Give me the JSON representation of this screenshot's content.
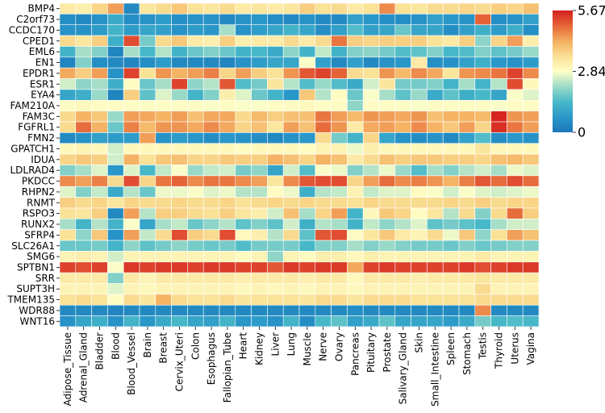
{
  "chart_data": {
    "type": "heatmap",
    "title": "",
    "xlabel": "",
    "ylabel": "",
    "rows": [
      "BMP4",
      "C2orf73",
      "CCDC170",
      "CPED1",
      "EML6",
      "EN1",
      "EPDR1",
      "ESR1",
      "EYA4",
      "FAM210A",
      "FAM3C",
      "FGFRL1",
      "FMN2",
      "GPATCH1",
      "IDUA",
      "LDLRAD4",
      "PKDCC",
      "RHPN2",
      "RNMT",
      "RSPO3",
      "RUNX2",
      "SFRP4",
      "SLC26A1",
      "SMG6",
      "SPTBN1",
      "SRR",
      "SUPT3H",
      "TMEM135",
      "WDR88",
      "WNT16"
    ],
    "columns": [
      "Adipose_Tissue",
      "Adrenal_Gland",
      "Bladder",
      "Blood",
      "Blood_Vessel",
      "Brain",
      "Breast",
      "Cervix_Uteri",
      "Colon",
      "Esophagus",
      "Fallopian_Tube",
      "Heart",
      "Kidney",
      "Liver",
      "Lung",
      "Muscle",
      "Nerve",
      "Ovary",
      "Pancreas",
      "Pituitary",
      "Prostate",
      "Salivary_Gland",
      "Skin",
      "Small_Intestine",
      "Spleen",
      "Stomach",
      "Testis",
      "Thyroid",
      "Uterus",
      "Vagina"
    ],
    "values": [
      [
        3.3,
        3.2,
        3.7,
        4.4,
        0.4,
        3.4,
        3.6,
        3.9,
        3.5,
        3.4,
        3.6,
        3.3,
        3.4,
        3.3,
        3.4,
        3.8,
        3.5,
        3.6,
        3.3,
        3.5,
        4.6,
        3.5,
        3.4,
        3.6,
        3.6,
        3.7,
        3.6,
        3.8,
        3.7,
        4.0
      ],
      [
        0.5,
        0.4,
        0.6,
        1.1,
        0.5,
        0.6,
        0.8,
        0.5,
        0.6,
        0.6,
        0.4,
        0.6,
        0.7,
        0.5,
        0.4,
        0.6,
        0.4,
        0.4,
        0.9,
        0.7,
        0.5,
        0.5,
        0.6,
        0.9,
        0.7,
        0.6,
        5.0,
        0.5,
        0.6,
        0.9
      ],
      [
        0.6,
        0.6,
        0.8,
        1.3,
        0.8,
        1.0,
        0.9,
        0.6,
        0.8,
        0.7,
        2.2,
        0.6,
        0.8,
        1.0,
        1.3,
        1.0,
        0.5,
        0.9,
        1.5,
        0.9,
        1.0,
        1.7,
        1.0,
        1.0,
        0.5,
        0.9,
        1.2,
        0.8,
        1.2,
        0.5
      ],
      [
        3.6,
        3.4,
        3.8,
        1.2,
        5.2,
        1.8,
        3.6,
        3.9,
        3.3,
        3.2,
        3.8,
        3.2,
        3.3,
        3.3,
        3.6,
        3.3,
        3.6,
        4.8,
        3.8,
        3.7,
        3.8,
        3.8,
        3.8,
        3.5,
        3.3,
        3.8,
        2.0,
        3.7,
        4.4,
        3.2
      ],
      [
        1.3,
        2.2,
        1.9,
        0.3,
        2.2,
        1.4,
        2.3,
        1.3,
        1.7,
        1.9,
        1.7,
        1.3,
        1.4,
        1.1,
        2.0,
        1.3,
        2.4,
        1.3,
        1.9,
        2.0,
        1.8,
        1.5,
        1.6,
        1.9,
        1.4,
        1.5,
        1.9,
        1.6,
        1.8,
        2.1
      ],
      [
        0.3,
        1.9,
        0.5,
        0.4,
        0.3,
        0.5,
        0.8,
        0.4,
        0.4,
        0.4,
        0.3,
        0.6,
        0.8,
        1.0,
        1.0,
        2.8,
        0.9,
        0.4,
        0.9,
        0.4,
        0.6,
        0.7,
        3.3,
        0.5,
        0.6,
        0.9,
        1.2,
        0.7,
        0.6,
        0.8
      ],
      [
        4.3,
        3.8,
        4.4,
        0.6,
        5.3,
        3.5,
        4.5,
        4.2,
        4.4,
        4.7,
        3.7,
        4.4,
        3.8,
        3.5,
        4.5,
        5.1,
        5.3,
        5.0,
        3.6,
        3.5,
        4.5,
        4.1,
        4.6,
        4.3,
        3.4,
        4.5,
        4.6,
        4.8,
        5.3,
        4.6
      ],
      [
        2.5,
        2.0,
        2.2,
        1.2,
        2.9,
        1.7,
        2.2,
        5.3,
        2.0,
        2.3,
        5.1,
        1.5,
        1.8,
        3.4,
        2.3,
        1.5,
        2.1,
        1.5,
        1.1,
        2.5,
        3.4,
        1.8,
        1.8,
        1.9,
        1.3,
        2.2,
        1.3,
        2.3,
        5.2,
        3.0
      ],
      [
        1.0,
        1.2,
        2.1,
        0.3,
        3.8,
        1.6,
        2.6,
        2.1,
        1.3,
        1.9,
        3.2,
        2.6,
        1.7,
        1.3,
        0.7,
        3.9,
        2.3,
        2.9,
        1.7,
        2.8,
        2.2,
        1.6,
        2.1,
        1.1,
        1.6,
        1.2,
        1.4,
        1.0,
        2.8,
        2.6
      ],
      [
        2.9,
        3.0,
        2.9,
        2.9,
        2.9,
        2.9,
        2.9,
        2.9,
        2.9,
        2.8,
        2.9,
        2.8,
        2.8,
        2.9,
        2.9,
        3.0,
        2.9,
        2.9,
        2.0,
        2.9,
        2.9,
        2.9,
        2.8,
        2.9,
        2.9,
        2.9,
        2.9,
        2.8,
        2.9,
        2.9
      ],
      [
        3.6,
        4.2,
        3.9,
        2.1,
        4.4,
        4.3,
        4.2,
        4.4,
        4.0,
        4.3,
        4.3,
        3.6,
        4.1,
        3.8,
        4.0,
        4.0,
        4.8,
        4.4,
        4.1,
        4.5,
        4.4,
        4.3,
        4.5,
        4.0,
        4.2,
        4.2,
        4.1,
        5.6,
        4.5,
        4.4
      ],
      [
        3.6,
        4.9,
        4.2,
        1.7,
        4.7,
        4.1,
        4.5,
        4.5,
        4.3,
        4.6,
        4.3,
        3.7,
        4.0,
        3.4,
        4.4,
        4.0,
        4.9,
        4.5,
        3.3,
        4.3,
        4.4,
        4.2,
        4.6,
        4.2,
        3.9,
        4.4,
        3.7,
        5.5,
        4.8,
        4.4
      ],
      [
        0.4,
        0.6,
        0.9,
        0.8,
        0.8,
        4.4,
        0.6,
        0.8,
        0.7,
        0.5,
        0.7,
        0.6,
        0.5,
        0.4,
        0.6,
        0.7,
        3.6,
        1.8,
        1.3,
        3.7,
        1.0,
        0.6,
        0.5,
        0.6,
        0.4,
        0.9,
        1.5,
        0.5,
        0.7,
        0.6
      ],
      [
        3.0,
        3.1,
        3.0,
        2.5,
        3.0,
        3.0,
        3.0,
        3.0,
        3.0,
        3.0,
        3.0,
        2.9,
        3.0,
        3.0,
        3.0,
        2.9,
        3.1,
        3.1,
        2.7,
        3.2,
        3.0,
        3.0,
        3.0,
        3.0,
        3.0,
        3.0,
        3.4,
        3.0,
        3.0,
        3.0
      ],
      [
        3.7,
        3.9,
        3.8,
        2.5,
        4.2,
        3.5,
        3.9,
        4.0,
        3.7,
        3.7,
        3.9,
        3.8,
        3.8,
        4.2,
        4.0,
        3.7,
        4.2,
        4.0,
        3.3,
        3.6,
        4.0,
        3.8,
        3.9,
        3.9,
        3.8,
        3.8,
        3.7,
        4.0,
        4.1,
        3.9
      ],
      [
        1.9,
        2.2,
        2.6,
        0.7,
        2.6,
        1.4,
        2.4,
        2.8,
        2.1,
        2.4,
        2.5,
        1.8,
        2.0,
        1.0,
        2.5,
        1.5,
        2.8,
        2.7,
        1.9,
        2.3,
        2.7,
        2.1,
        1.5,
        2.2,
        1.9,
        2.3,
        2.5,
        2.2,
        2.7,
        2.6
      ],
      [
        4.6,
        4.4,
        4.7,
        3.6,
        5.2,
        3.7,
        4.8,
        5.0,
        4.6,
        4.8,
        4.8,
        4.6,
        4.4,
        3.4,
        4.6,
        5.1,
        5.2,
        5.2,
        3.7,
        4.4,
        4.9,
        4.6,
        4.7,
        4.5,
        4.2,
        4.7,
        5.1,
        4.9,
        5.2,
        4.9
      ],
      [
        2.6,
        1.9,
        2.4,
        1.1,
        2.3,
        1.7,
        2.7,
        2.7,
        2.8,
        2.6,
        2.7,
        2.3,
        2.3,
        2.9,
        2.7,
        1.2,
        2.3,
        2.4,
        3.1,
        2.4,
        2.6,
        2.6,
        2.9,
        2.8,
        2.5,
        2.8,
        2.6,
        2.5,
        2.6,
        2.7
      ],
      [
        3.8,
        3.6,
        3.7,
        3.4,
        3.7,
        3.6,
        3.6,
        3.7,
        3.6,
        3.6,
        3.7,
        3.5,
        3.6,
        3.7,
        3.6,
        3.7,
        3.6,
        3.6,
        3.5,
        3.7,
        3.6,
        3.6,
        3.6,
        3.6,
        3.7,
        3.6,
        3.8,
        3.6,
        3.7,
        3.7
      ],
      [
        3.5,
        3.4,
        3.8,
        0.4,
        4.4,
        2.3,
        3.8,
        3.8,
        3.6,
        3.5,
        3.8,
        3.4,
        3.2,
        2.5,
        4.0,
        2.2,
        3.7,
        4.4,
        1.3,
        3.0,
        3.9,
        3.7,
        2.9,
        3.4,
        2.3,
        3.6,
        1.9,
        3.6,
        4.9,
        3.8
      ],
      [
        2.2,
        1.3,
        2.3,
        1.3,
        2.8,
        1.0,
        2.2,
        2.4,
        1.7,
        2.0,
        2.3,
        1.6,
        1.9,
        1.6,
        2.5,
        1.2,
        2.3,
        2.2,
        1.3,
        2.4,
        2.0,
        2.3,
        2.6,
        1.6,
        1.8,
        1.6,
        1.4,
        2.2,
        2.5,
        2.5
      ],
      [
        3.5,
        2.0,
        3.9,
        0.6,
        4.4,
        2.4,
        3.6,
        5.2,
        3.8,
        3.6,
        5.2,
        3.0,
        3.2,
        2.3,
        3.6,
        1.6,
        5.1,
        5.2,
        2.9,
        3.4,
        3.9,
        3.3,
        3.1,
        3.6,
        2.7,
        3.9,
        2.0,
        3.5,
        4.4,
        4.0
      ],
      [
        1.7,
        1.7,
        1.8,
        1.3,
        2.0,
        1.6,
        1.8,
        2.0,
        1.8,
        1.7,
        1.8,
        1.5,
        1.8,
        1.8,
        1.8,
        1.4,
        1.9,
        1.9,
        2.2,
        1.9,
        2.1,
        1.9,
        1.8,
        1.8,
        1.7,
        1.9,
        1.7,
        1.8,
        1.9,
        1.9
      ],
      [
        3.1,
        3.2,
        3.1,
        2.5,
        3.1,
        3.1,
        3.1,
        3.1,
        3.1,
        3.1,
        3.1,
        2.9,
        3.1,
        2.0,
        3.1,
        2.9,
        3.2,
        3.2,
        3.0,
        3.2,
        3.1,
        3.1,
        3.1,
        3.1,
        3.1,
        3.1,
        3.3,
        3.1,
        3.1,
        3.1
      ],
      [
        5.3,
        5.2,
        5.3,
        2.8,
        5.4,
        5.3,
        5.4,
        5.4,
        5.3,
        5.4,
        5.4,
        5.3,
        5.3,
        5.1,
        5.4,
        5.3,
        5.4,
        5.4,
        4.3,
        5.3,
        5.4,
        5.3,
        5.3,
        5.3,
        5.3,
        5.4,
        5.2,
        5.3,
        5.4,
        5.4
      ],
      [
        3.3,
        3.3,
        3.3,
        1.9,
        3.3,
        3.1,
        3.3,
        3.3,
        3.3,
        3.3,
        3.3,
        3.2,
        3.3,
        3.3,
        3.3,
        3.2,
        3.3,
        3.3,
        3.0,
        3.3,
        3.3,
        3.3,
        3.2,
        3.3,
        3.3,
        3.3,
        3.4,
        3.3,
        3.3,
        3.3
      ],
      [
        3.1,
        3.1,
        3.1,
        2.6,
        3.1,
        3.0,
        3.1,
        3.1,
        3.1,
        3.1,
        3.1,
        3.0,
        3.1,
        3.0,
        3.1,
        3.0,
        3.1,
        3.1,
        3.0,
        3.1,
        3.1,
        3.1,
        3.1,
        3.1,
        3.1,
        3.1,
        3.6,
        3.1,
        3.1,
        3.1
      ],
      [
        3.5,
        3.6,
        3.5,
        2.9,
        3.6,
        3.4,
        4.2,
        3.6,
        3.5,
        3.5,
        3.6,
        3.4,
        3.5,
        3.5,
        3.5,
        3.4,
        3.6,
        3.6,
        3.4,
        3.6,
        3.6,
        3.6,
        3.5,
        3.5,
        3.5,
        3.5,
        3.6,
        3.6,
        3.6,
        3.6
      ],
      [
        0.4,
        0.4,
        0.4,
        0.3,
        0.4,
        0.4,
        0.4,
        0.4,
        0.4,
        0.4,
        0.4,
        0.4,
        0.4,
        0.4,
        0.4,
        0.4,
        0.4,
        0.4,
        0.5,
        0.4,
        0.4,
        0.4,
        0.4,
        0.4,
        0.4,
        0.4,
        4.6,
        0.4,
        0.4,
        0.4
      ],
      [
        0.6,
        1.0,
        1.2,
        0.6,
        1.3,
        0.7,
        1.1,
        1.4,
        1.0,
        0.9,
        1.3,
        0.7,
        0.8,
        0.6,
        1.3,
        0.5,
        1.4,
        1.6,
        0.9,
        1.1,
        1.6,
        1.0,
        1.0,
        1.0,
        0.8,
        1.1,
        1.8,
        1.4,
        1.5,
        1.4
      ]
    ],
    "colorbar": {
      "min": 0,
      "max": 5.67,
      "ticks": [
        5.67,
        2.84,
        0
      ],
      "tick_labels": [
        "5.67",
        "2.84",
        "0"
      ],
      "colormap": "RdYlBu_r"
    },
    "colors": {
      "low": "#2b83ba",
      "mid": "#ffffbf",
      "high": "#d7191c",
      "cell_border": "#ffffff"
    }
  }
}
